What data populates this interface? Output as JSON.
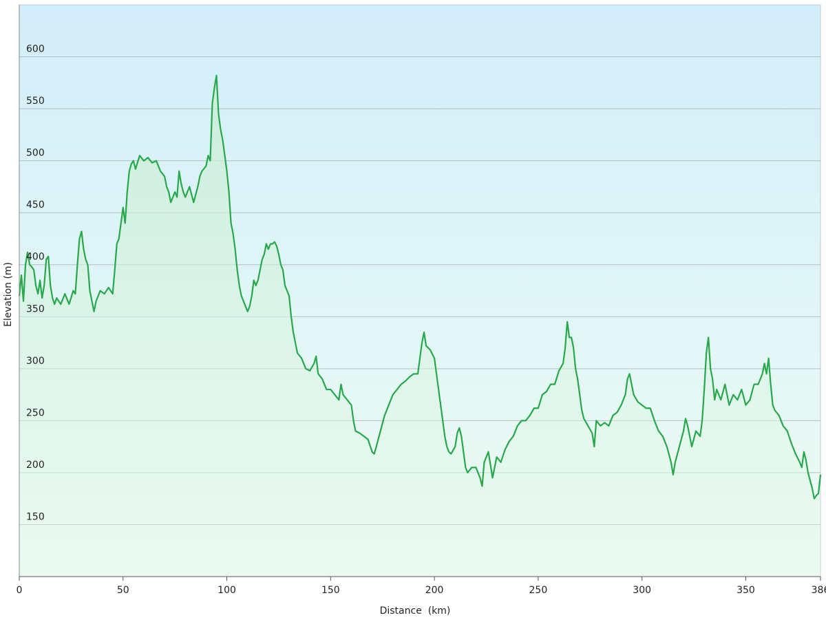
{
  "chart_data": {
    "type": "area",
    "xlabel": "Distance  (km)",
    "ylabel": "Elevation (m)",
    "color": "#27a84a",
    "grid": true,
    "xlim": [
      0,
      386
    ],
    "xticks": [
      0,
      50,
      100,
      150,
      200,
      250,
      300,
      350,
      386
    ],
    "ylim": [
      100,
      650
    ],
    "yticks": [
      150,
      200,
      250,
      300,
      350,
      400,
      450,
      500,
      550,
      600
    ],
    "x": [
      0,
      1,
      2,
      3,
      4,
      5,
      6,
      7,
      8,
      9,
      10,
      11,
      12,
      13,
      14,
      15,
      16,
      17,
      18,
      20,
      22,
      24,
      26,
      27,
      28,
      29,
      30,
      31,
      32,
      33,
      34,
      35,
      36,
      37,
      39,
      41,
      43,
      45,
      46,
      47,
      48,
      49,
      50,
      51,
      52,
      53,
      54,
      55,
      56,
      58,
      60,
      62,
      64,
      66,
      68,
      70,
      71,
      72,
      73,
      74,
      75,
      76,
      77,
      78,
      79,
      80,
      82,
      84,
      86,
      87,
      88,
      90,
      91,
      92,
      93,
      94,
      95,
      96,
      97,
      98,
      99,
      100,
      101,
      102,
      103,
      104,
      105,
      106,
      107,
      108,
      109,
      110,
      111,
      112,
      113,
      114,
      115,
      116,
      117,
      118,
      119,
      120,
      121,
      122,
      123,
      124,
      125,
      126,
      127,
      128,
      129,
      130,
      131,
      132,
      133,
      134,
      136,
      138,
      140,
      142,
      143,
      144,
      146,
      148,
      150,
      152,
      154,
      155,
      156,
      158,
      160,
      161,
      162,
      164,
      166,
      168,
      170,
      171,
      172,
      174,
      176,
      178,
      180,
      182,
      184,
      186,
      188,
      190,
      192,
      193,
      194,
      195,
      196,
      198,
      200,
      201,
      202,
      203,
      204,
      205,
      206,
      207,
      208,
      210,
      211,
      212,
      213,
      214,
      215,
      216,
      218,
      220,
      222,
      223,
      224,
      226,
      228,
      229,
      230,
      232,
      234,
      236,
      238,
      240,
      242,
      244,
      246,
      248,
      250,
      252,
      254,
      256,
      258,
      260,
      262,
      263,
      264,
      265,
      266,
      267,
      268,
      269,
      270,
      271,
      272,
      274,
      276,
      277,
      278,
      280,
      282,
      284,
      286,
      288,
      290,
      292,
      293,
      294,
      295,
      296,
      298,
      300,
      302,
      304,
      306,
      308,
      310,
      312,
      314,
      315,
      316,
      318,
      320,
      321,
      322,
      324,
      326,
      328,
      329,
      330,
      331,
      332,
      333,
      334,
      335,
      336,
      338,
      340,
      342,
      344,
      346,
      348,
      350,
      352,
      354,
      356,
      358,
      359,
      360,
      361,
      362,
      363,
      364,
      366,
      368,
      370,
      372,
      374,
      376,
      377,
      378,
      379,
      380,
      382,
      383,
      384,
      385,
      386
    ],
    "values": [
      370,
      390,
      365,
      400,
      412,
      400,
      398,
      395,
      380,
      372,
      385,
      368,
      380,
      405,
      408,
      380,
      368,
      362,
      368,
      362,
      372,
      362,
      375,
      372,
      400,
      425,
      432,
      415,
      405,
      400,
      375,
      365,
      355,
      365,
      375,
      372,
      378,
      372,
      395,
      420,
      425,
      440,
      455,
      440,
      470,
      490,
      497,
      500,
      492,
      505,
      500,
      503,
      498,
      500,
      490,
      485,
      475,
      470,
      460,
      465,
      470,
      465,
      490,
      478,
      470,
      465,
      475,
      460,
      475,
      485,
      490,
      495,
      505,
      500,
      555,
      570,
      582,
      545,
      530,
      520,
      505,
      490,
      470,
      440,
      430,
      415,
      395,
      380,
      370,
      365,
      360,
      355,
      360,
      370,
      385,
      380,
      385,
      395,
      405,
      410,
      420,
      415,
      420,
      420,
      422,
      418,
      410,
      400,
      395,
      380,
      375,
      370,
      350,
      335,
      325,
      315,
      310,
      300,
      298,
      305,
      312,
      295,
      290,
      280,
      280,
      275,
      270,
      285,
      275,
      270,
      265,
      250,
      240,
      238,
      235,
      232,
      220,
      218,
      225,
      240,
      255,
      265,
      275,
      280,
      285,
      288,
      292,
      295,
      295,
      310,
      325,
      335,
      322,
      318,
      310,
      295,
      280,
      265,
      250,
      235,
      225,
      220,
      218,
      225,
      238,
      243,
      235,
      220,
      205,
      200,
      205,
      205,
      195,
      187,
      210,
      220,
      195,
      205,
      215,
      210,
      222,
      230,
      235,
      245,
      250,
      250,
      255,
      262,
      262,
      275,
      278,
      285,
      285,
      298,
      305,
      320,
      345,
      330,
      330,
      320,
      300,
      290,
      275,
      260,
      252,
      245,
      238,
      225,
      250,
      245,
      248,
      245,
      255,
      258,
      265,
      275,
      290,
      295,
      285,
      275,
      268,
      265,
      262,
      262,
      250,
      240,
      235,
      225,
      210,
      198,
      210,
      225,
      240,
      252,
      245,
      225,
      240,
      235,
      250,
      280,
      315,
      330,
      300,
      290,
      270,
      280,
      270,
      285,
      265,
      275,
      270,
      280,
      265,
      270,
      285,
      285,
      295,
      305,
      295,
      310,
      285,
      265,
      260,
      255,
      245,
      240,
      228,
      218,
      210,
      205,
      220,
      212,
      200,
      185,
      175,
      178,
      180,
      198
    ]
  }
}
